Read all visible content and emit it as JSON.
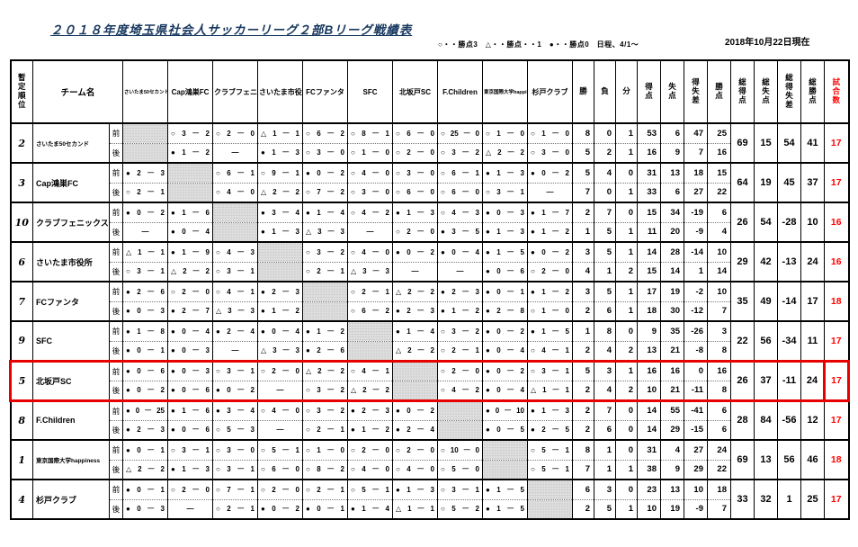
{
  "title": "２０１８年度埼玉県社会人サッカーリーグ２部Bリーグ戦績表",
  "legend": "○・・勝点3　△・・勝点・・1　●・・勝点0　日程、4/1～",
  "as_of": "2018年10月22日現在",
  "colors": {
    "title": "#17375e",
    "accent_red": "#ff0000",
    "highlight_border": "#e60000",
    "self_cell": "#dedede"
  },
  "table": {
    "corner_headers": {
      "rank": "暫定順位",
      "team": "チーム名"
    },
    "half_labels": [
      "前",
      "後"
    ],
    "stat_headers": [
      "勝",
      "負",
      "分",
      "得点",
      "失点",
      "得失差",
      "勝点"
    ],
    "total_headers": [
      "総得点",
      "総失点",
      "総得失差",
      "総勝点"
    ],
    "games_header": "試合数",
    "teams": [
      {
        "rank": "2",
        "name": "さいたま50セカンド",
        "small": true,
        "highlight": false,
        "front": {
          "results": [
            "",
            "○3-2",
            "○2-0",
            "△1-1",
            "○6-2",
            "○8-1",
            "○6-0",
            "○25-0",
            "○1-0",
            "○1-0"
          ],
          "stats": [
            "8",
            "0",
            "1",
            "53",
            "6",
            "47",
            "25"
          ]
        },
        "back": {
          "results": [
            "",
            "●1-2",
            "—",
            "●1-3",
            "○3-0",
            "○1-0",
            "○2-0",
            "○3-2",
            "△2-2",
            "○3-0"
          ],
          "stats": [
            "5",
            "2",
            "1",
            "16",
            "9",
            "7",
            "16"
          ]
        },
        "totals": [
          "69",
          "15",
          "54",
          "41"
        ],
        "games": "17"
      },
      {
        "rank": "3",
        "name": "Cap鴻巣FC",
        "small": false,
        "highlight": false,
        "front": {
          "results": [
            "●2-3",
            "",
            "○6-1",
            "○9-1",
            "●0-2",
            "○4-0",
            "○3-0",
            "○6-1",
            "●1-3",
            "●0-2"
          ],
          "stats": [
            "5",
            "4",
            "0",
            "31",
            "13",
            "18",
            "15"
          ]
        },
        "back": {
          "results": [
            "○2-1",
            "",
            "○4-0",
            "△2-2",
            "○7-2",
            "○3-0",
            "○6-0",
            "○6-0",
            "○3-1",
            "—"
          ],
          "stats": [
            "7",
            "0",
            "1",
            "33",
            "6",
            "27",
            "22"
          ]
        },
        "totals": [
          "64",
          "19",
          "45",
          "37"
        ],
        "games": "17"
      },
      {
        "rank": "10",
        "name": "クラブフェニックス",
        "small": false,
        "highlight": false,
        "front": {
          "results": [
            "●0-2",
            "●1-6",
            "",
            "●3-4",
            "●1-4",
            "○4-2",
            "●1-3",
            "○4-3",
            "●0-3",
            "●1-7"
          ],
          "stats": [
            "2",
            "7",
            "0",
            "15",
            "34",
            "-19",
            "6"
          ]
        },
        "back": {
          "results": [
            "—",
            "●0-4",
            "",
            "●1-3",
            "△3-3",
            "—",
            "○2-0",
            "●3-5",
            "●1-3",
            "●1-2"
          ],
          "stats": [
            "1",
            "5",
            "1",
            "11",
            "20",
            "-9",
            "4"
          ]
        },
        "totals": [
          "26",
          "54",
          "-28",
          "10"
        ],
        "games": "16"
      },
      {
        "rank": "6",
        "name": "さいたま市役所",
        "small": false,
        "highlight": false,
        "front": {
          "results": [
            "△1-1",
            "●1-9",
            "○4-3",
            "",
            "○3-2",
            "○4-0",
            "●0-2",
            "●0-4",
            "●1-5",
            "●0-2"
          ],
          "stats": [
            "3",
            "5",
            "1",
            "14",
            "28",
            "-14",
            "10"
          ]
        },
        "back": {
          "results": [
            "○3-1",
            "△2-2",
            "○3-1",
            "",
            "○2-1",
            "△3-3",
            "—",
            "—",
            "●0-6",
            "○2-0"
          ],
          "stats": [
            "4",
            "1",
            "2",
            "15",
            "14",
            "1",
            "14"
          ]
        },
        "totals": [
          "29",
          "42",
          "-13",
          "24"
        ],
        "games": "16"
      },
      {
        "rank": "7",
        "name": "FCファンタ",
        "small": false,
        "highlight": false,
        "front": {
          "results": [
            "●2-6",
            "○2-0",
            "○4-1",
            "●2-3",
            "",
            "○2-1",
            "△2-2",
            "●2-3",
            "●0-1",
            "●1-2"
          ],
          "stats": [
            "3",
            "5",
            "1",
            "17",
            "19",
            "-2",
            "10"
          ]
        },
        "back": {
          "results": [
            "●0-3",
            "●2-7",
            "△3-3",
            "●1-2",
            "",
            "○6-2",
            "●2-3",
            "●1-2",
            "●2-8",
            "○1-0"
          ],
          "stats": [
            "2",
            "6",
            "1",
            "18",
            "30",
            "-12",
            "7"
          ]
        },
        "totals": [
          "35",
          "49",
          "-14",
          "17"
        ],
        "games": "18"
      },
      {
        "rank": "9",
        "name": "SFC",
        "small": false,
        "highlight": false,
        "front": {
          "results": [
            "●1-8",
            "●0-4",
            "●2-4",
            "●0-4",
            "●1-2",
            "",
            "●1-4",
            "○3-2",
            "●0-2",
            "●1-5"
          ],
          "stats": [
            "1",
            "8",
            "0",
            "9",
            "35",
            "-26",
            "3"
          ]
        },
        "back": {
          "results": [
            "●0-1",
            "●0-3",
            "—",
            "△3-3",
            "●2-6",
            "",
            "△2-2",
            "○2-1",
            "●0-4",
            "○4-1"
          ],
          "stats": [
            "2",
            "4",
            "2",
            "13",
            "21",
            "-8",
            "8"
          ]
        },
        "totals": [
          "22",
          "56",
          "-34",
          "11"
        ],
        "games": "17"
      },
      {
        "rank": "5",
        "name": "北坂戸SC",
        "small": false,
        "highlight": true,
        "front": {
          "results": [
            "●0-6",
            "●0-3",
            "○3-1",
            "○2-0",
            "△2-2",
            "○4-1",
            "",
            "○2-0",
            "●0-2",
            "○3-1"
          ],
          "stats": [
            "5",
            "3",
            "1",
            "16",
            "16",
            "0",
            "16"
          ]
        },
        "back": {
          "results": [
            "●0-2",
            "●0-6",
            "●0-2",
            "—",
            "○3-2",
            "△2-2",
            "",
            "○4-2",
            "●0-4",
            "△1-1"
          ],
          "stats": [
            "2",
            "4",
            "2",
            "10",
            "21",
            "-11",
            "8"
          ]
        },
        "totals": [
          "26",
          "37",
          "-11",
          "24"
        ],
        "games": "17"
      },
      {
        "rank": "8",
        "name": "F.Children",
        "small": false,
        "highlight": false,
        "front": {
          "results": [
            "●0-25",
            "●1-6",
            "●3-4",
            "○4-0",
            "○3-2",
            "●2-3",
            "●0-2",
            "",
            "●0-10",
            "●1-3"
          ],
          "stats": [
            "2",
            "7",
            "0",
            "14",
            "55",
            "-41",
            "6"
          ]
        },
        "back": {
          "results": [
            "●2-3",
            "●0-6",
            "○5-3",
            "—",
            "○2-1",
            "●1-2",
            "●2-4",
            "",
            "●0-5",
            "●2-5"
          ],
          "stats": [
            "2",
            "6",
            "0",
            "14",
            "29",
            "-15",
            "6"
          ]
        },
        "totals": [
          "28",
          "84",
          "-56",
          "12"
        ],
        "games": "17"
      },
      {
        "rank": "1",
        "name": "東京国際大学happiness",
        "small": true,
        "highlight": false,
        "front": {
          "results": [
            "●0-1",
            "○3-1",
            "○3-0",
            "○5-1",
            "○1-0",
            "○2-0",
            "○2-0",
            "○10-0",
            "",
            "○5-1"
          ],
          "stats": [
            "8",
            "1",
            "0",
            "31",
            "4",
            "27",
            "24"
          ]
        },
        "back": {
          "results": [
            "△2-2",
            "●1-3",
            "○3-1",
            "○6-0",
            "○8-2",
            "○4-0",
            "○4-0",
            "○5-0",
            "",
            "○5-1"
          ],
          "stats": [
            "7",
            "1",
            "1",
            "38",
            "9",
            "29",
            "22"
          ]
        },
        "totals": [
          "69",
          "13",
          "56",
          "46"
        ],
        "games": "18"
      },
      {
        "rank": "4",
        "name": "杉戸クラブ",
        "small": false,
        "highlight": false,
        "front": {
          "results": [
            "●0-1",
            "○2-0",
            "○7-1",
            "○2-0",
            "○2-1",
            "○5-1",
            "●1-3",
            "○3-1",
            "●1-5",
            ""
          ],
          "stats": [
            "6",
            "3",
            "0",
            "23",
            "13",
            "10",
            "18"
          ]
        },
        "back": {
          "results": [
            "●0-3",
            "—",
            "○2-1",
            "●0-2",
            "●0-1",
            "●1-4",
            "△1-1",
            "○5-2",
            "●1-5",
            ""
          ],
          "stats": [
            "2",
            "5",
            "1",
            "10",
            "19",
            "-9",
            "7"
          ]
        },
        "totals": [
          "33",
          "32",
          "1",
          "25"
        ],
        "games": "17"
      }
    ]
  }
}
